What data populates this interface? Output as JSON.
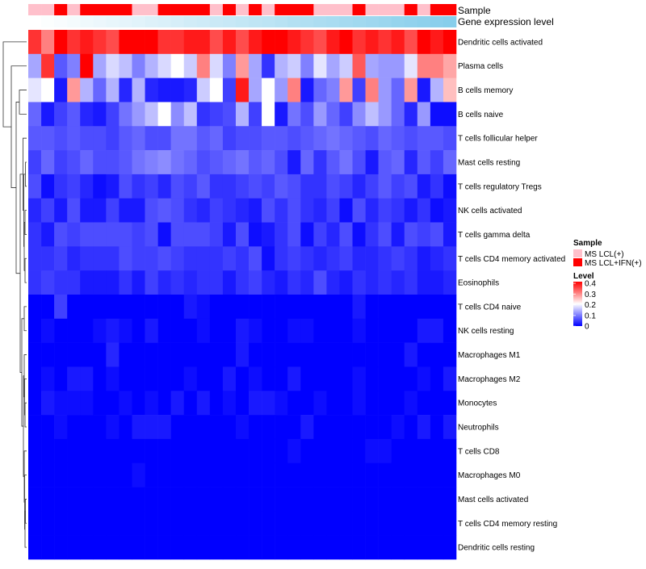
{
  "chart_data": {
    "type": "heatmap",
    "title": "",
    "annotations": [
      {
        "name": "Sample",
        "type": "categorical",
        "values": [
          "MS LCL(+)",
          "MS LCL(+)",
          "MS LCL+IFN(+)",
          "MS LCL(+)",
          "MS LCL+IFN(+)",
          "MS LCL+IFN(+)",
          "MS LCL+IFN(+)",
          "MS LCL+IFN(+)",
          "MS LCL(+)",
          "MS LCL(+)",
          "MS LCL+IFN(+)",
          "MS LCL+IFN(+)",
          "MS LCL+IFN(+)",
          "MS LCL+IFN(+)",
          "MS LCL(+)",
          "MS LCL+IFN(+)",
          "MS LCL(+)",
          "MS LCL+IFN(+)",
          "MS LCL(+)",
          "MS LCL+IFN(+)",
          "MS LCL+IFN(+)",
          "MS LCL+IFN(+)",
          "MS LCL(+)",
          "MS LCL(+)",
          "MS LCL(+)",
          "MS LCL+IFN(+)",
          "MS LCL(+)",
          "MS LCL(+)",
          "MS LCL(+)",
          "MS LCL+IFN(+)",
          "MS LCL(+)",
          "MS LCL+IFN(+)",
          "MS LCL+IFN(+)"
        ]
      },
      {
        "name": "Gene expression level",
        "type": "gradient",
        "values": [
          0.0,
          0.03,
          0.06,
          0.09,
          0.13,
          0.16,
          0.19,
          0.22,
          0.25,
          0.28,
          0.31,
          0.34,
          0.38,
          0.41,
          0.44,
          0.47,
          0.5,
          0.53,
          0.56,
          0.59,
          0.63,
          0.66,
          0.69,
          0.72,
          0.75,
          0.78,
          0.81,
          0.84,
          0.88,
          0.91,
          0.94,
          0.97,
          1.0
        ]
      }
    ],
    "rows": [
      "Dendritic cells activated",
      "Plasma cells",
      "B cells memory",
      "B cells naive",
      "T cells follicular helper",
      "Mast cells resting",
      "T cells regulatory  Tregs",
      "NK cells activated",
      "T cells gamma delta",
      "T cells CD4 memory activated",
      "Eosinophils",
      "T cells CD4 naive",
      "NK cells resting",
      "Macrophages M1",
      "Macrophages M2",
      "Monocytes",
      "Neutrophils",
      "T cells CD8",
      "Macrophages M0",
      "Mast cells activated",
      "T cells CD4 memory resting",
      "Dendritic cells resting"
    ],
    "n_columns": 33,
    "values": [
      [
        0.36,
        0.3,
        0.4,
        0.36,
        0.38,
        0.36,
        0.34,
        0.4,
        0.4,
        0.4,
        0.36,
        0.36,
        0.38,
        0.38,
        0.34,
        0.38,
        0.34,
        0.38,
        0.4,
        0.4,
        0.38,
        0.36,
        0.34,
        0.38,
        0.4,
        0.36,
        0.38,
        0.36,
        0.38,
        0.34,
        0.4,
        0.38,
        0.4
      ],
      [
        0.13,
        0.36,
        0.07,
        0.1,
        0.4,
        0.13,
        0.17,
        0.15,
        0.1,
        0.14,
        0.17,
        0.2,
        0.16,
        0.3,
        0.17,
        0.1,
        0.28,
        0.13,
        0.04,
        0.14,
        0.16,
        0.1,
        0.18,
        0.13,
        0.16,
        0.33,
        0.13,
        0.12,
        0.12,
        0.18,
        0.3,
        0.3,
        0.27
      ],
      [
        0.18,
        0.2,
        0.02,
        0.28,
        0.14,
        0.08,
        0.14,
        0.03,
        0.14,
        0.03,
        0.02,
        0.02,
        0.03,
        0.16,
        0.2,
        0.05,
        0.38,
        0.13,
        0.2,
        0.12,
        0.3,
        0.02,
        0.08,
        0.1,
        0.28,
        0.05,
        0.3,
        0.12,
        0.08,
        0.28,
        0.02,
        0.14,
        0.25
      ],
      [
        0.08,
        0.02,
        0.05,
        0.07,
        0.03,
        0.02,
        0.05,
        0.09,
        0.12,
        0.15,
        0.2,
        0.11,
        0.15,
        0.04,
        0.05,
        0.06,
        0.14,
        0.05,
        0.2,
        0.02,
        0.09,
        0.06,
        0.12,
        0.08,
        0.05,
        0.11,
        0.15,
        0.12,
        0.08,
        0.03,
        0.12,
        0.01,
        0.01
      ],
      [
        0.07,
        0.07,
        0.06,
        0.07,
        0.06,
        0.06,
        0.05,
        0.07,
        0.08,
        0.06,
        0.06,
        0.09,
        0.09,
        0.07,
        0.08,
        0.05,
        0.06,
        0.06,
        0.07,
        0.07,
        0.06,
        0.07,
        0.08,
        0.09,
        0.08,
        0.07,
        0.06,
        0.08,
        0.07,
        0.06,
        0.07,
        0.07,
        0.06
      ],
      [
        0.05,
        0.08,
        0.05,
        0.06,
        0.08,
        0.06,
        0.06,
        0.07,
        0.09,
        0.1,
        0.11,
        0.09,
        0.08,
        0.06,
        0.07,
        0.08,
        0.09,
        0.07,
        0.08,
        0.06,
        0.02,
        0.08,
        0.04,
        0.07,
        0.09,
        0.06,
        0.02,
        0.07,
        0.08,
        0.03,
        0.07,
        0.05,
        0.08
      ],
      [
        0.06,
        0.01,
        0.04,
        0.05,
        0.03,
        0.01,
        0.02,
        0.06,
        0.04,
        0.05,
        0.03,
        0.06,
        0.05,
        0.07,
        0.04,
        0.04,
        0.05,
        0.06,
        0.05,
        0.07,
        0.06,
        0.04,
        0.04,
        0.06,
        0.05,
        0.03,
        0.05,
        0.07,
        0.05,
        0.06,
        0.02,
        0.04,
        0.01
      ],
      [
        0.03,
        0.05,
        0.02,
        0.06,
        0.02,
        0.02,
        0.05,
        0.02,
        0.02,
        0.06,
        0.07,
        0.06,
        0.04,
        0.03,
        0.05,
        0.04,
        0.03,
        0.02,
        0.06,
        0.04,
        0.06,
        0.04,
        0.03,
        0.05,
        0.01,
        0.06,
        0.03,
        0.05,
        0.04,
        0.02,
        0.04,
        0.01,
        0.02
      ],
      [
        0.04,
        0.02,
        0.06,
        0.05,
        0.06,
        0.06,
        0.06,
        0.06,
        0.05,
        0.06,
        0.01,
        0.06,
        0.06,
        0.06,
        0.05,
        0.02,
        0.06,
        0.01,
        0.02,
        0.04,
        0.06,
        0.01,
        0.05,
        0.03,
        0.06,
        0.01,
        0.04,
        0.06,
        0.02,
        0.06,
        0.05,
        0.06,
        0.02
      ],
      [
        0.04,
        0.04,
        0.05,
        0.03,
        0.04,
        0.04,
        0.04,
        0.06,
        0.05,
        0.05,
        0.06,
        0.05,
        0.04,
        0.04,
        0.04,
        0.05,
        0.04,
        0.06,
        0.01,
        0.04,
        0.05,
        0.04,
        0.03,
        0.04,
        0.05,
        0.03,
        0.03,
        0.04,
        0.05,
        0.04,
        0.02,
        0.03,
        0.04
      ],
      [
        0.04,
        0.05,
        0.04,
        0.04,
        0.02,
        0.02,
        0.02,
        0.04,
        0.02,
        0.05,
        0.03,
        0.04,
        0.03,
        0.04,
        0.04,
        0.02,
        0.04,
        0.05,
        0.03,
        0.02,
        0.04,
        0.03,
        0.06,
        0.03,
        0.02,
        0.04,
        0.03,
        0.04,
        0.03,
        0.04,
        0.02,
        0.02,
        0.03
      ],
      [
        0.0,
        0.0,
        0.05,
        0.0,
        0.0,
        0.0,
        0.0,
        0.0,
        0.0,
        0.0,
        0.0,
        0.0,
        0.02,
        0.01,
        0.0,
        0.0,
        0.0,
        0.0,
        0.0,
        0.0,
        0.0,
        0.0,
        0.0,
        0.0,
        0.0,
        0.02,
        0.0,
        0.0,
        0.0,
        0.0,
        0.0,
        0.0,
        0.0
      ],
      [
        0.0,
        0.01,
        0.0,
        0.0,
        0.0,
        0.01,
        0.02,
        0.01,
        0.0,
        0.02,
        0.0,
        0.0,
        0.0,
        0.01,
        0.0,
        0.0,
        0.02,
        0.01,
        0.0,
        0.0,
        0.01,
        0.01,
        0.0,
        0.0,
        0.0,
        0.01,
        0.0,
        0.0,
        0.0,
        0.0,
        0.02,
        0.02,
        0.0
      ],
      [
        0.0,
        0.0,
        0.0,
        0.0,
        0.0,
        0.0,
        0.03,
        0.0,
        0.0,
        0.0,
        0.0,
        0.0,
        0.0,
        0.0,
        0.0,
        0.0,
        0.02,
        0.0,
        0.0,
        0.0,
        0.0,
        0.0,
        0.0,
        0.0,
        0.0,
        0.0,
        0.0,
        0.0,
        0.0,
        0.02,
        0.0,
        0.0,
        0.0
      ],
      [
        0.0,
        0.01,
        0.0,
        0.02,
        0.02,
        0.0,
        0.01,
        0.0,
        0.0,
        0.0,
        0.0,
        0.0,
        0.01,
        0.0,
        0.0,
        0.02,
        0.0,
        0.01,
        0.0,
        0.0,
        0.02,
        0.0,
        0.0,
        0.0,
        0.0,
        0.01,
        0.0,
        0.0,
        0.0,
        0.0,
        0.01,
        0.0,
        0.02
      ],
      [
        0.0,
        0.02,
        0.01,
        0.01,
        0.01,
        0.0,
        0.0,
        0.01,
        0.0,
        0.01,
        0.0,
        0.02,
        0.0,
        0.02,
        0.0,
        0.01,
        0.0,
        0.02,
        0.02,
        0.01,
        0.0,
        0.0,
        0.01,
        0.0,
        0.0,
        0.01,
        0.0,
        0.0,
        0.0,
        0.01,
        0.0,
        0.0,
        0.0
      ],
      [
        0.0,
        0.0,
        0.01,
        0.0,
        0.0,
        0.0,
        0.01,
        0.0,
        0.02,
        0.02,
        0.02,
        0.0,
        0.0,
        0.0,
        0.0,
        0.0,
        0.01,
        0.0,
        0.0,
        0.0,
        0.0,
        0.02,
        0.0,
        0.0,
        0.0,
        0.0,
        0.0,
        0.0,
        0.01,
        0.0,
        0.02,
        0.0,
        0.02
      ],
      [
        0.0,
        0.0,
        0.0,
        0.0,
        0.0,
        0.0,
        0.0,
        0.0,
        0.0,
        0.0,
        0.0,
        0.0,
        0.0,
        0.0,
        0.0,
        0.0,
        0.0,
        0.0,
        0.0,
        0.0,
        0.01,
        0.0,
        0.0,
        0.0,
        0.0,
        0.0,
        0.01,
        0.01,
        0.0,
        0.0,
        0.0,
        0.0,
        0.0
      ],
      [
        0.0,
        0.0,
        0.0,
        0.0,
        0.0,
        0.0,
        0.0,
        0.0,
        0.01,
        0.0,
        0.0,
        0.0,
        0.0,
        0.0,
        0.0,
        0.0,
        0.0,
        0.0,
        0.0,
        0.0,
        0.0,
        0.0,
        0.0,
        0.0,
        0.0,
        0.0,
        0.0,
        0.0,
        0.0,
        0.0,
        0.0,
        0.0,
        0.0
      ],
      [
        0.0,
        0.0,
        0.0,
        0.0,
        0.0,
        0.0,
        0.0,
        0.0,
        0.0,
        0.0,
        0.0,
        0.0,
        0.0,
        0.0,
        0.0,
        0.0,
        0.0,
        0.0,
        0.0,
        0.0,
        0.0,
        0.0,
        0.0,
        0.0,
        0.0,
        0.0,
        0.0,
        0.0,
        0.0,
        0.0,
        0.0,
        0.0,
        0.0
      ],
      [
        0.0,
        0.0,
        0.0,
        0.0,
        0.0,
        0.0,
        0.0,
        0.0,
        0.0,
        0.0,
        0.0,
        0.0,
        0.0,
        0.0,
        0.0,
        0.0,
        0.0,
        0.0,
        0.0,
        0.0,
        0.0,
        0.0,
        0.0,
        0.0,
        0.0,
        0.0,
        0.0,
        0.0,
        0.0,
        0.0,
        0.0,
        0.0,
        0.0
      ],
      [
        0.0,
        0.0,
        0.0,
        0.0,
        0.0,
        0.0,
        0.0,
        0.0,
        0.0,
        0.0,
        0.0,
        0.0,
        0.0,
        0.0,
        0.0,
        0.0,
        0.0,
        0.0,
        0.0,
        0.0,
        0.0,
        0.0,
        0.0,
        0.0,
        0.0,
        0.0,
        0.0,
        0.0,
        0.0,
        0.0,
        0.0,
        0.0,
        0.0
      ]
    ],
    "color_scale": {
      "domain": [
        0,
        0.2,
        0.4
      ],
      "colors": [
        "#0000ff",
        "#ffffff",
        "#ff0000"
      ]
    },
    "legend": {
      "placement": "right",
      "sample": {
        "title": "Sample",
        "entries": [
          {
            "label": "MS LCL(+)",
            "color": "#ffc0cb"
          },
          {
            "label": "MS LCL+IFN(+)",
            "color": "#ff0000"
          }
        ]
      },
      "level": {
        "title": "Level",
        "ticks": [
          "0.4",
          "0.3",
          "0.2",
          "0.1",
          "0"
        ]
      }
    },
    "expression_colors": [
      "#ffffff",
      "#87ceeb"
    ],
    "dendrogram": "rows"
  }
}
